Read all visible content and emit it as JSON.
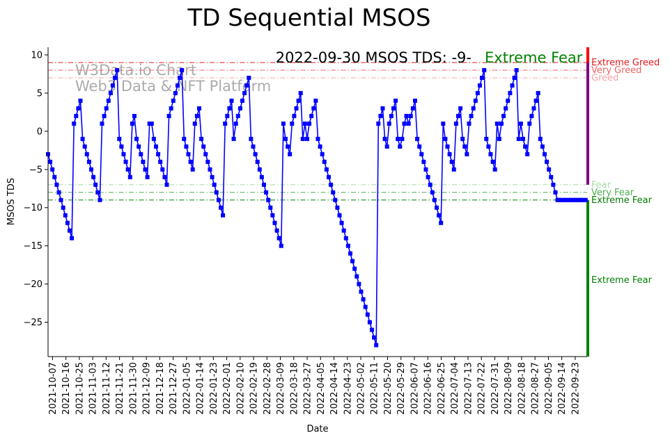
{
  "chart_data": {
    "type": "line",
    "title": "TD Sequential MSOS",
    "xlabel": "Date",
    "ylabel": "MSOS TDS",
    "annotation": "2022-09-30 MSOS TDS: -9-",
    "annotation_status": "Extreme Fear",
    "watermark_lines": [
      "W3Data.io Chart",
      "Web3 Data & NFT Platform"
    ],
    "x_start": "2021-10-04",
    "x_end": "2022-09-30",
    "xlim": [
      "2021-10-04",
      "2022-10-01"
    ],
    "ylim": [
      -29.5,
      11
    ],
    "y_ticks": [
      10,
      5,
      0,
      -5,
      -10,
      -15,
      -20,
      -25
    ],
    "x_tick_labels": [
      "2021-10-07",
      "2021-10-16",
      "2021-10-25",
      "2021-11-03",
      "2021-11-12",
      "2021-11-21",
      "2021-11-30",
      "2021-12-09",
      "2021-12-18",
      "2021-12-27",
      "2022-01-05",
      "2022-01-14",
      "2022-01-23",
      "2022-02-01",
      "2022-02-10",
      "2022-02-19",
      "2022-02-28",
      "2022-03-09",
      "2022-03-18",
      "2022-03-27",
      "2022-04-05",
      "2022-04-14",
      "2022-04-23",
      "2022-05-02",
      "2022-05-11",
      "2022-05-20",
      "2022-05-29",
      "2022-06-07",
      "2022-06-16",
      "2022-06-25",
      "2022-07-04",
      "2022-07-13",
      "2022-07-22",
      "2022-07-31",
      "2022-08-09",
      "2022-08-18",
      "2022-08-27",
      "2022-09-05",
      "2022-09-14",
      "2022-09-23"
    ],
    "reference_lines": [
      {
        "label": "Extreme Greed",
        "y": 9,
        "color": "#e31a1c"
      },
      {
        "label": "Very Greed",
        "y": 8,
        "color": "#f06262"
      },
      {
        "label": "Greed",
        "y": 7,
        "color": "#f4a6a6"
      },
      {
        "label": "Fear",
        "y": -7,
        "color": "#a8dca8"
      },
      {
        "label": "Very Fear",
        "y": -8,
        "color": "#4caf50"
      },
      {
        "label": "Extreme Fear",
        "y": -9,
        "color": "#007a00"
      }
    ],
    "side_bars": [
      {
        "from": 11,
        "to": 9,
        "color": "#ff0000"
      },
      {
        "from": 9,
        "to": -7,
        "color": "#800080"
      },
      {
        "from": -9,
        "to": -29.5,
        "color": "#008000"
      }
    ],
    "side_labels": [
      {
        "text": "Extreme Fear",
        "y": -19.5,
        "color": "#008000"
      }
    ],
    "series": [
      {
        "color": "#0000ff",
        "values": [
          -3,
          -4,
          -5,
          -6,
          -7,
          -8,
          -9,
          -10,
          -11,
          -12,
          -13,
          -14,
          1,
          2,
          3,
          4,
          -1,
          -2,
          -3,
          -4,
          -5,
          -6,
          -7,
          -8,
          -9,
          1,
          2,
          3,
          4,
          5,
          6,
          7,
          8,
          -1,
          -2,
          -3,
          -4,
          -5,
          -6,
          1,
          2,
          -1,
          -2,
          -3,
          -4,
          -5,
          -6,
          1,
          1,
          -1,
          -2,
          -3,
          -4,
          -5,
          -6,
          -7,
          2,
          3,
          4,
          5,
          6,
          7,
          8,
          -1,
          -2,
          -3,
          -4,
          -5,
          1,
          2,
          3,
          -1,
          -2,
          -3,
          -4,
          -5,
          -6,
          -7,
          -8,
          -9,
          -10,
          -11,
          1,
          2,
          3,
          4,
          -1,
          1,
          2,
          3,
          4,
          5,
          6,
          7,
          -1,
          -2,
          -3,
          -4,
          -5,
          -6,
          -7,
          -8,
          -9,
          -10,
          -11,
          -12,
          -13,
          -14,
          -15,
          1,
          -1,
          -2,
          -3,
          1,
          2,
          3,
          4,
          5,
          -1,
          1,
          -1,
          1,
          2,
          3,
          4,
          -1,
          -2,
          -3,
          -4,
          -5,
          -6,
          -7,
          -8,
          -9,
          -10,
          -11,
          -12,
          -13,
          -14,
          -15,
          -16,
          -17,
          -18,
          -19,
          -20,
          -21,
          -22,
          -23,
          -24,
          -25,
          -26,
          -27,
          -28,
          1,
          2,
          3,
          -1,
          -2,
          1,
          2,
          3,
          4,
          -1,
          -2,
          -1,
          1,
          2,
          1,
          2,
          3,
          4,
          -1,
          -2,
          -3,
          -4,
          -5,
          -6,
          -7,
          -8,
          -9,
          -10,
          -11,
          -12,
          1,
          -1,
          -2,
          -3,
          -4,
          -5,
          1,
          2,
          3,
          -1,
          -2,
          -3,
          1,
          2,
          3,
          4,
          5,
          6,
          7,
          8,
          -1,
          -2,
          -3,
          -4,
          -5,
          1,
          -1,
          1,
          2,
          3,
          4,
          5,
          6,
          7,
          8,
          -1,
          1,
          -1,
          -2,
          -3,
          1,
          2,
          3,
          4,
          5,
          -1,
          -2,
          -3,
          -4,
          -5,
          -6,
          -7,
          -8,
          -9,
          -9,
          -9,
          -9,
          -9,
          -9,
          -9,
          -9,
          -9,
          -9,
          -9,
          -9,
          -9,
          -9
        ]
      }
    ]
  }
}
